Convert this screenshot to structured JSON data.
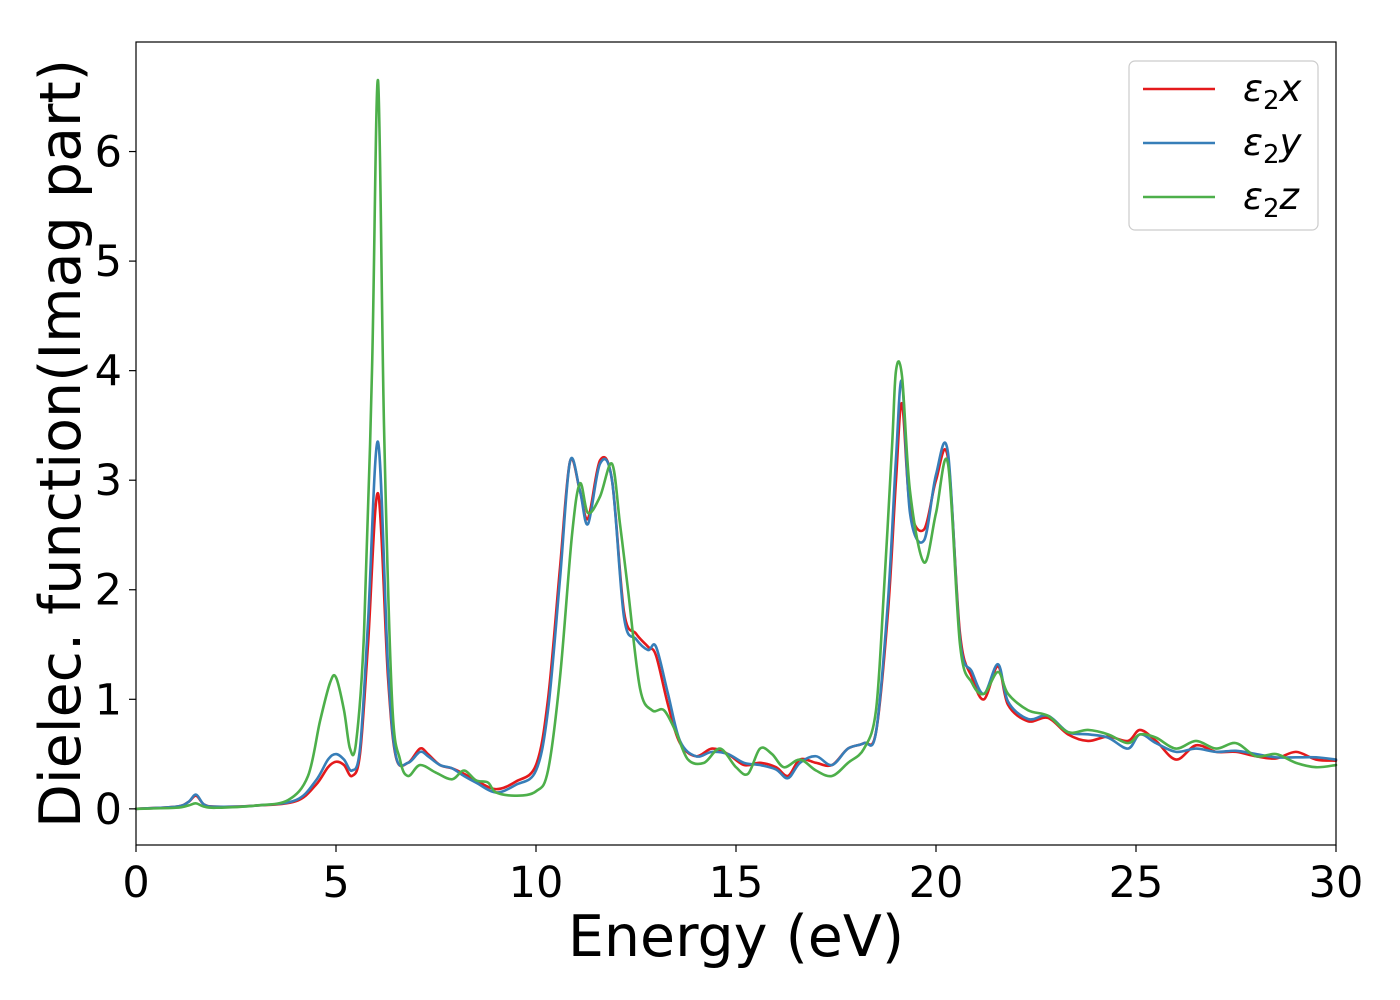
{
  "chart_data": {
    "type": "line",
    "xlabel": "Energy (eV)",
    "ylabel": "Dielec. function(Imag part)",
    "xlim": [
      0,
      30
    ],
    "ylim": [
      -0.33,
      7.0
    ],
    "xticks": [
      0,
      5,
      10,
      15,
      20,
      25,
      30
    ],
    "yticks": [
      0,
      1,
      2,
      3,
      4,
      5,
      6
    ],
    "grid": false,
    "legend_position": "top-right",
    "series": [
      {
        "name": "ε₂x",
        "legend_main": "ε",
        "legend_sub": "2",
        "legend_tail": "x",
        "color": "#e41a1c",
        "x": [
          0,
          1,
          1.3,
          1.5,
          1.7,
          2,
          3,
          4,
          4.5,
          4.8,
          5.0,
          5.2,
          5.4,
          5.6,
          5.8,
          6.05,
          6.3,
          6.5,
          6.8,
          7.1,
          7.3,
          7.6,
          7.9,
          8.2,
          8.5,
          9.0,
          9.5,
          10.0,
          10.3,
          10.6,
          10.85,
          11.1,
          11.3,
          11.6,
          11.9,
          12.2,
          12.5,
          12.8,
          13.0,
          13.3,
          13.6,
          14.0,
          14.4,
          14.8,
          15.2,
          15.6,
          16.0,
          16.3,
          16.6,
          17.0,
          17.4,
          17.8,
          18.2,
          18.5,
          18.8,
          19.0,
          19.15,
          19.35,
          19.7,
          20.0,
          20.3,
          20.6,
          20.9,
          21.2,
          21.55,
          21.8,
          22.3,
          22.8,
          23.3,
          23.8,
          24.3,
          24.8,
          25.1,
          25.5,
          26.0,
          26.5,
          27.0,
          27.5,
          28.0,
          28.5,
          29.0,
          29.5,
          30.0
        ],
        "y": [
          0,
          0.02,
          0.06,
          0.12,
          0.04,
          0.02,
          0.03,
          0.07,
          0.22,
          0.38,
          0.43,
          0.4,
          0.3,
          0.5,
          1.5,
          2.88,
          1.2,
          0.47,
          0.42,
          0.55,
          0.5,
          0.4,
          0.37,
          0.32,
          0.26,
          0.18,
          0.25,
          0.4,
          1.0,
          2.2,
          3.17,
          2.9,
          2.65,
          3.18,
          3.0,
          1.8,
          1.6,
          1.48,
          1.4,
          0.95,
          0.6,
          0.48,
          0.55,
          0.5,
          0.4,
          0.42,
          0.38,
          0.3,
          0.45,
          0.42,
          0.4,
          0.55,
          0.6,
          0.7,
          1.8,
          3.0,
          3.7,
          2.75,
          2.55,
          3.0,
          3.2,
          1.6,
          1.2,
          1.0,
          1.3,
          0.95,
          0.8,
          0.83,
          0.68,
          0.62,
          0.66,
          0.62,
          0.72,
          0.62,
          0.45,
          0.58,
          0.52,
          0.52,
          0.48,
          0.46,
          0.52,
          0.45,
          0.44
        ]
      },
      {
        "name": "ε₂y",
        "legend_main": "ε",
        "legend_sub": "2",
        "legend_tail": "y",
        "color": "#377eb8",
        "x": [
          0,
          1,
          1.3,
          1.5,
          1.7,
          2,
          3,
          4,
          4.5,
          4.8,
          5.0,
          5.2,
          5.4,
          5.6,
          5.8,
          6.05,
          6.3,
          6.5,
          6.8,
          7.1,
          7.3,
          7.6,
          7.9,
          8.2,
          8.5,
          9.0,
          9.5,
          10.0,
          10.3,
          10.6,
          10.85,
          11.1,
          11.3,
          11.6,
          11.9,
          12.2,
          12.5,
          12.8,
          13.0,
          13.3,
          13.6,
          14.0,
          14.4,
          14.8,
          15.2,
          15.6,
          16.0,
          16.3,
          16.6,
          17.0,
          17.4,
          17.8,
          18.2,
          18.5,
          18.8,
          19.0,
          19.15,
          19.35,
          19.7,
          20.0,
          20.3,
          20.6,
          20.9,
          21.2,
          21.55,
          21.8,
          22.3,
          22.8,
          23.3,
          23.8,
          24.3,
          24.8,
          25.1,
          25.5,
          26.0,
          26.5,
          27.0,
          27.5,
          28.0,
          28.5,
          29.0,
          29.5,
          30.0
        ],
        "y": [
          0,
          0.02,
          0.06,
          0.13,
          0.04,
          0.02,
          0.03,
          0.08,
          0.26,
          0.45,
          0.5,
          0.45,
          0.35,
          0.55,
          1.7,
          3.35,
          1.3,
          0.48,
          0.42,
          0.52,
          0.48,
          0.4,
          0.37,
          0.3,
          0.24,
          0.15,
          0.22,
          0.35,
          0.9,
          2.1,
          3.17,
          2.9,
          2.6,
          3.15,
          3.0,
          1.75,
          1.55,
          1.45,
          1.48,
          1.05,
          0.62,
          0.48,
          0.52,
          0.5,
          0.42,
          0.4,
          0.36,
          0.28,
          0.42,
          0.48,
          0.4,
          0.55,
          0.6,
          0.7,
          1.9,
          3.2,
          3.9,
          2.7,
          2.45,
          3.05,
          3.25,
          1.55,
          1.25,
          1.05,
          1.32,
          0.98,
          0.82,
          0.85,
          0.7,
          0.68,
          0.65,
          0.55,
          0.68,
          0.6,
          0.52,
          0.55,
          0.52,
          0.53,
          0.5,
          0.47,
          0.47,
          0.47,
          0.45
        ]
      },
      {
        "name": "ε₂z",
        "legend_main": "ε",
        "legend_sub": "2",
        "legend_tail": "z",
        "color": "#4daf4a",
        "x": [
          0,
          1,
          1.3,
          1.5,
          1.7,
          2,
          3,
          3.8,
          4.3,
          4.6,
          4.85,
          5.0,
          5.2,
          5.35,
          5.5,
          5.7,
          5.9,
          6.05,
          6.2,
          6.4,
          6.6,
          6.8,
          7.1,
          7.5,
          7.9,
          8.2,
          8.5,
          8.8,
          9.0,
          9.5,
          10.0,
          10.3,
          10.6,
          10.9,
          11.1,
          11.3,
          11.6,
          11.9,
          12.1,
          12.3,
          12.6,
          12.9,
          13.2,
          13.5,
          13.8,
          14.2,
          14.6,
          15.0,
          15.3,
          15.6,
          15.9,
          16.2,
          16.6,
          17.0,
          17.4,
          17.8,
          18.2,
          18.5,
          18.7,
          18.9,
          19.0,
          19.15,
          19.35,
          19.7,
          20.0,
          20.3,
          20.6,
          20.9,
          21.2,
          21.55,
          21.8,
          22.3,
          22.8,
          23.3,
          23.8,
          24.3,
          24.8,
          25.1,
          25.5,
          26.0,
          26.5,
          27.0,
          27.5,
          28.0,
          28.5,
          29.0,
          29.5,
          30.0
        ],
        "y": [
          0,
          0.01,
          0.03,
          0.05,
          0.02,
          0.01,
          0.03,
          0.08,
          0.3,
          0.8,
          1.15,
          1.2,
          0.9,
          0.55,
          0.6,
          1.6,
          4.0,
          6.65,
          3.5,
          1.0,
          0.45,
          0.3,
          0.4,
          0.33,
          0.27,
          0.35,
          0.26,
          0.24,
          0.15,
          0.12,
          0.16,
          0.35,
          1.2,
          2.5,
          2.97,
          2.7,
          2.85,
          3.15,
          2.6,
          2.0,
          1.1,
          0.9,
          0.9,
          0.7,
          0.45,
          0.42,
          0.55,
          0.38,
          0.32,
          0.55,
          0.5,
          0.38,
          0.45,
          0.35,
          0.3,
          0.42,
          0.55,
          0.9,
          2.0,
          3.3,
          4.0,
          3.95,
          2.9,
          2.25,
          2.7,
          3.15,
          1.5,
          1.15,
          1.05,
          1.25,
          1.05,
          0.9,
          0.85,
          0.7,
          0.72,
          0.68,
          0.6,
          0.68,
          0.65,
          0.55,
          0.62,
          0.55,
          0.6,
          0.48,
          0.5,
          0.42,
          0.38,
          0.4
        ]
      }
    ]
  }
}
